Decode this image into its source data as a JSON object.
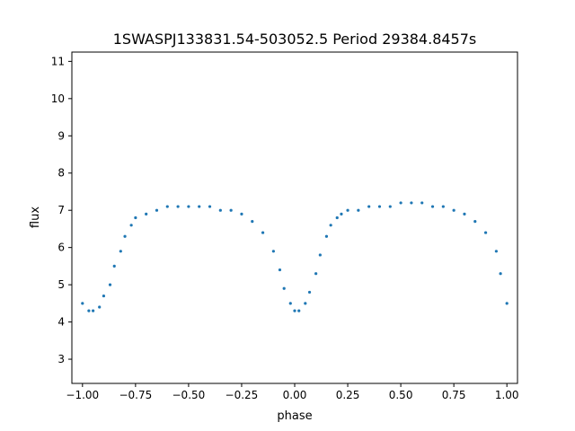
{
  "chart_data": {
    "type": "scatter",
    "title": "1SWASPJ133831.54-503052.5 Period 29384.8457s",
    "xlabel": "phase",
    "ylabel": "flux",
    "xlim": [
      -1.05,
      1.05
    ],
    "ylim": [
      2.35,
      11.25
    ],
    "x_ticks": [
      -1.0,
      -0.75,
      -0.5,
      -0.25,
      0.0,
      0.25,
      0.5,
      0.75,
      1.0
    ],
    "x_tick_labels": [
      "−1.00",
      "−0.75",
      "−0.50",
      "−0.25",
      "0.00",
      "0.25",
      "0.50",
      "0.75",
      "1.00"
    ],
    "y_ticks": [
      3,
      4,
      5,
      6,
      7,
      8,
      9,
      10,
      11
    ],
    "y_tick_labels": [
      "3",
      "4",
      "5",
      "6",
      "7",
      "8",
      "9",
      "10",
      "11"
    ],
    "grid": false,
    "marker_color": "#1f77b4",
    "series": [
      {
        "x": [
          -1.0,
          -0.97,
          -0.95,
          -0.92,
          -0.9,
          -0.87,
          -0.85,
          -0.82,
          -0.8,
          -0.77,
          -0.75,
          -0.7,
          -0.65,
          -0.6,
          -0.55,
          -0.5,
          -0.45,
          -0.4,
          -0.35,
          -0.3,
          -0.25,
          -0.2,
          -0.15,
          -0.1,
          -0.07,
          -0.05,
          -0.02,
          0.0,
          0.02,
          0.05,
          0.07,
          0.1,
          0.12,
          0.15,
          0.17,
          0.2,
          0.22,
          0.25,
          0.3,
          0.35,
          0.4,
          0.45,
          0.5,
          0.55,
          0.6,
          0.65,
          0.7,
          0.75,
          0.8,
          0.85,
          0.9,
          0.95,
          0.97,
          1.0
        ],
        "y": [
          4.5,
          4.3,
          4.3,
          4.4,
          4.7,
          5.0,
          5.5,
          5.9,
          6.3,
          6.6,
          6.8,
          6.9,
          7.0,
          7.1,
          7.1,
          7.1,
          7.1,
          7.1,
          7.0,
          7.0,
          6.9,
          6.7,
          6.4,
          5.9,
          5.4,
          4.9,
          4.5,
          4.3,
          4.3,
          4.5,
          4.8,
          5.3,
          5.8,
          6.3,
          6.6,
          6.8,
          6.9,
          7.0,
          7.0,
          7.1,
          7.1,
          7.1,
          7.2,
          7.2,
          7.2,
          7.1,
          7.1,
          7.0,
          6.9,
          6.7,
          6.4,
          5.9,
          5.3,
          4.5
        ]
      }
    ]
  }
}
